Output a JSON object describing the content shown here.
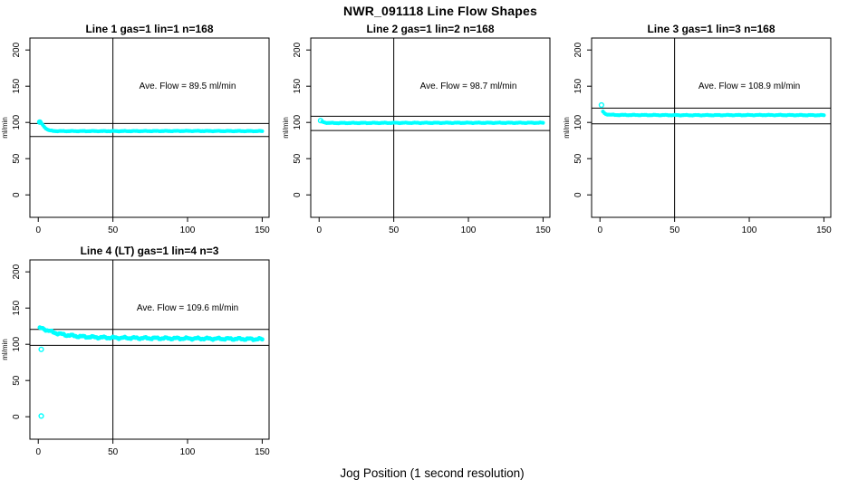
{
  "figure": {
    "title": "NWR_091118  Line Flow Shapes",
    "xlabel": "Jog Position (1 second resolution)",
    "ylabel": "ml/min",
    "point_color": "#00FFFF",
    "axis_color": "#000000",
    "background": "#FFFFFF"
  },
  "chart_data": [
    {
      "type": "scatter",
      "title": "Line 1 gas=1 lin=1 n=168",
      "annotation": "Ave. Flow =  89.5  ml/min",
      "ave_flow_ml_min": 89.5,
      "n": 168,
      "ylabel": "ml/min",
      "xticks": [
        0,
        50,
        100,
        150
      ],
      "yticks": [
        0,
        50,
        100,
        150,
        200
      ],
      "xlim": [
        -5.6,
        154.6
      ],
      "ylim": [
        -31,
        216.5
      ],
      "vline_x": 50,
      "hlines": [
        98.5,
        80.6
      ],
      "band": [
        [
          1,
          100
        ],
        [
          2,
          99
        ],
        [
          3,
          96.5
        ],
        [
          4,
          94
        ],
        [
          5,
          92
        ],
        [
          6,
          90.5
        ],
        [
          7,
          89.5
        ],
        [
          8,
          88.8
        ],
        [
          10,
          88.2
        ],
        [
          15,
          88
        ],
        [
          60,
          88
        ],
        [
          100,
          88.2
        ],
        [
          150,
          88
        ]
      ],
      "outliers": [
        [
          1,
          100.5
        ]
      ],
      "jitter": 0.25,
      "marker_radius": 2.1
    },
    {
      "type": "scatter",
      "title": "Line 2 gas=1 lin=2 n=168",
      "annotation": "Ave. Flow =  98.7  ml/min",
      "ave_flow_ml_min": 98.7,
      "n": 168,
      "ylabel": "ml/min",
      "xticks": [
        0,
        50,
        100,
        150
      ],
      "yticks": [
        0,
        50,
        100,
        150,
        200
      ],
      "xlim": [
        -5.6,
        154.6
      ],
      "ylim": [
        -31,
        216.5
      ],
      "vline_x": 50,
      "hlines": [
        108.6,
        88.8
      ],
      "band": [
        [
          2,
          101
        ],
        [
          3,
          100.2
        ],
        [
          4,
          99.8
        ],
        [
          6,
          99.4
        ],
        [
          10,
          99.2
        ],
        [
          50,
          99.4
        ],
        [
          100,
          99.5
        ],
        [
          150,
          99.5
        ]
      ],
      "outliers": [
        [
          1,
          102.5
        ]
      ],
      "jitter": 0.3,
      "marker_radius": 2.1
    },
    {
      "type": "scatter",
      "title": "Line 3 gas=1 lin=3 n=168",
      "annotation": "Ave. Flow =  108.9  ml/min",
      "ave_flow_ml_min": 108.9,
      "n": 168,
      "ylabel": "ml/min",
      "xticks": [
        0,
        50,
        100,
        150
      ],
      "yticks": [
        0,
        50,
        100,
        150,
        200
      ],
      "xlim": [
        -5.6,
        154.6
      ],
      "ylim": [
        -31,
        216.5
      ],
      "vline_x": 50,
      "hlines": [
        119.8,
        98.0
      ],
      "band": [
        [
          2,
          115
        ],
        [
          3,
          112.5
        ],
        [
          4,
          111.5
        ],
        [
          6,
          110.8
        ],
        [
          10,
          110.3
        ],
        [
          60,
          110
        ],
        [
          110,
          110.2
        ],
        [
          150,
          110
        ]
      ],
      "outliers": [
        [
          1,
          124
        ]
      ],
      "jitter": 0.3,
      "marker_radius": 2.1
    },
    {
      "type": "scatter",
      "title": "Line 4 (LT) gas=1 lin=4 n=3",
      "annotation": "Ave. Flow =  109.6  ml/min",
      "ave_flow_ml_min": 109.6,
      "n": 3,
      "ylabel": "ml/min",
      "xticks": [
        0,
        50,
        100,
        150
      ],
      "yticks": [
        0,
        50,
        100,
        150,
        200
      ],
      "xlim": [
        -5.6,
        154.6
      ],
      "ylim": [
        -31,
        216.5
      ],
      "vline_x": 50,
      "hlines": [
        120.6,
        98.6
      ],
      "band": [
        [
          1,
          122
        ],
        [
          2,
          122
        ],
        [
          4,
          121
        ],
        [
          6,
          119.5
        ],
        [
          8,
          118
        ],
        [
          10,
          116.5
        ],
        [
          14,
          114.5
        ],
        [
          18,
          113
        ],
        [
          24,
          111.5
        ],
        [
          30,
          110.5
        ],
        [
          40,
          109.5
        ],
        [
          50,
          109
        ],
        [
          70,
          108.5
        ],
        [
          100,
          108
        ],
        [
          130,
          107.5
        ],
        [
          150,
          107
        ]
      ],
      "outliers": [
        [
          2,
          93
        ],
        [
          2,
          1
        ]
      ],
      "jitter": 1.0,
      "marker_radius": 2.4
    }
  ]
}
